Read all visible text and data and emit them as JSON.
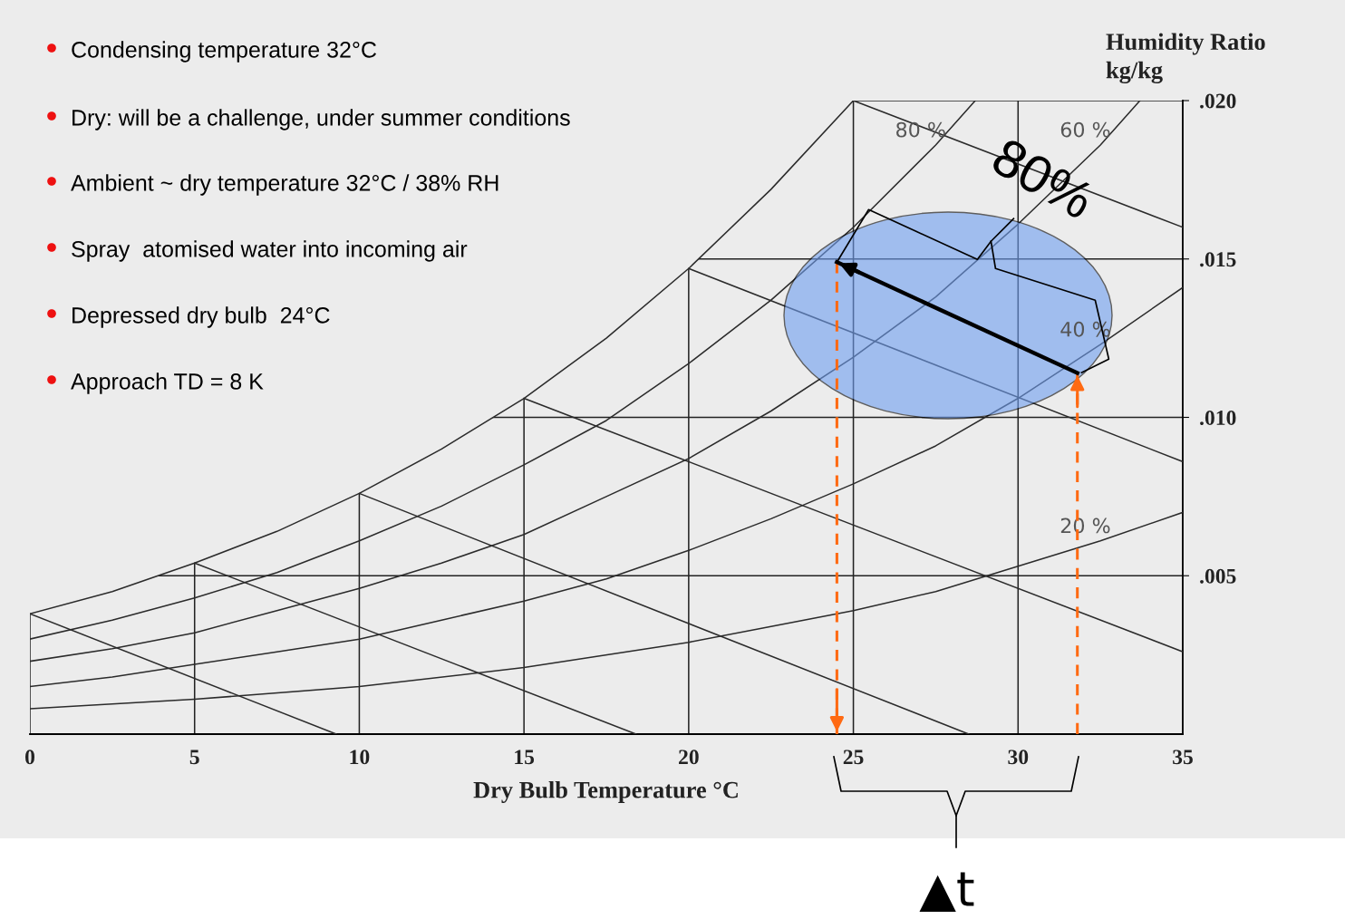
{
  "chart_data": {
    "type": "line",
    "xlabel": "Dry Bulb Temperature °C",
    "ylabel": "Humidity Ratio\nkg/kg",
    "xlim": [
      0,
      35
    ],
    "ylim": [
      0,
      0.02
    ],
    "xticks": [
      0,
      5,
      10,
      15,
      20,
      25,
      30,
      35
    ],
    "yticks": [
      {
        "value": 0.005,
        "label": ".005"
      },
      {
        "value": 0.01,
        "label": ".010"
      },
      {
        "value": 0.015,
        "label": ".015"
      },
      {
        "value": 0.02,
        "label": ".020"
      }
    ],
    "grid": true,
    "series": [
      {
        "color": "#2b2b2b",
        "x": [
          0,
          2.5,
          5,
          7.5,
          10,
          12.5,
          15,
          17.5,
          20,
          22.5,
          25
        ],
        "values": [
          0.0038,
          0.0045,
          0.0054,
          0.0064,
          0.0076,
          0.009,
          0.0106,
          0.0125,
          0.0147,
          0.0172,
          0.02
        ]
      },
      {
        "name": "80 %",
        "color": "#2b2b2b",
        "x": [
          0,
          2.5,
          5,
          7.5,
          10,
          12.5,
          15,
          17.5,
          20,
          22.5,
          25,
          27.5,
          28.7
        ],
        "values": [
          0.003,
          0.0036,
          0.0043,
          0.0051,
          0.0061,
          0.0072,
          0.0085,
          0.0099,
          0.0117,
          0.0137,
          0.016,
          0.0186,
          0.02
        ]
      },
      {
        "name": "60 %",
        "color": "#2b2b2b",
        "x": [
          0,
          2.5,
          5,
          7.5,
          10,
          12.5,
          15,
          17.5,
          20,
          22.5,
          25,
          27.5,
          30,
          32.5,
          33.7
        ],
        "values": [
          0.0023,
          0.0027,
          0.0032,
          0.0039,
          0.0046,
          0.0054,
          0.0063,
          0.0075,
          0.0087,
          0.0102,
          0.0119,
          0.0138,
          0.0161,
          0.0186,
          0.02
        ]
      },
      {
        "name": "40 %",
        "color": "#2b2b2b",
        "x": [
          0,
          2.5,
          5,
          7.5,
          10,
          12.5,
          15,
          17.5,
          20,
          22.5,
          25,
          27.5,
          30,
          32.5,
          35
        ],
        "values": [
          0.0015,
          0.0018,
          0.0022,
          0.0026,
          0.003,
          0.0036,
          0.0042,
          0.0049,
          0.0058,
          0.0068,
          0.0079,
          0.0091,
          0.0106,
          0.0123,
          0.0141
        ]
      },
      {
        "name": "20 %",
        "color": "#2b2b2b",
        "x": [
          0,
          5,
          10,
          15,
          20,
          22.5,
          25,
          27.5,
          30,
          32.5,
          35
        ],
        "values": [
          0.0008,
          0.0011,
          0.0015,
          0.0021,
          0.0029,
          0.0034,
          0.0039,
          0.0045,
          0.0053,
          0.0061,
          0.007
        ]
      },
      {
        "color": "#2b2b2b",
        "x": [
          0,
          9.3
        ],
        "values": [
          0.0038,
          0
        ]
      },
      {
        "color": "#2b2b2b",
        "x": [
          5,
          18.4
        ],
        "values": [
          0.0054,
          0
        ]
      },
      {
        "color": "#2b2b2b",
        "x": [
          10,
          28.5
        ],
        "values": [
          0.0076,
          0
        ]
      },
      {
        "color": "#2b2b2b",
        "x": [
          15,
          35
        ],
        "values": [
          0.0106,
          0.0026
        ]
      },
      {
        "color": "#2b2b2b",
        "x": [
          20,
          35
        ],
        "values": [
          0.0147,
          0.0086
        ]
      },
      {
        "color": "#2b2b2b",
        "x": [
          25,
          35
        ],
        "values": [
          0.02,
          0.016
        ]
      },
      {
        "color": "#ff6a13",
        "line_style": "dashed",
        "x": [
          24.5,
          24.5
        ],
        "values": [
          0.0149,
          0
        ]
      },
      {
        "color": "#ff6a13",
        "line_style": "dashed",
        "x": [
          31.8,
          31.8
        ],
        "values": [
          0,
          0.0114
        ]
      },
      {
        "color": "#000000",
        "line_style": "solid",
        "x": [
          31.8,
          24.5
        ],
        "values": [
          0.0114,
          0.0149
        ]
      }
    ],
    "annotations": [
      "Condensing temperature 32°C",
      "Dry: will be a challenge, under summer conditions",
      "Ambient ~ dry temperature 32°C / 38% RH",
      "Spray  atomised water into incoming air",
      "Depressed dry bulb  24°C",
      "Approach TD = 8 K",
      {
        "text": "80%",
        "x": 24.5,
        "y": 0.0149
      },
      "▲t"
    ]
  }
}
